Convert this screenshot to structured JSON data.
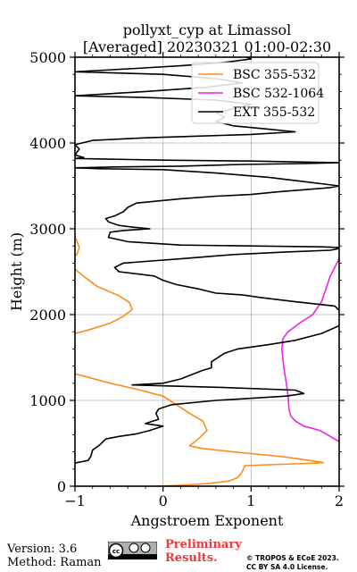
{
  "chart_data": {
    "type": "line",
    "title": "pollyxt_cyp at Limassol",
    "subtitle": "[Averaged] 20230321 01:00-02:30",
    "xlabel": "Angstroem Exponent",
    "ylabel": "Height (m)",
    "xlim": [
      -1,
      2
    ],
    "ylim": [
      0,
      5000
    ],
    "xticks": [
      "−1",
      "0",
      "1",
      "2"
    ],
    "yticks": [
      "0",
      "1000",
      "2000",
      "3000",
      "4000",
      "5000"
    ],
    "grid": true,
    "legend_position": "top-right",
    "series": [
      {
        "name": "BSC 355-532",
        "color": "#ff8c1a",
        "points": [
          [
            -0.1,
            0
          ],
          [
            0.2,
            10
          ],
          [
            0.5,
            30
          ],
          [
            0.75,
            60
          ],
          [
            0.85,
            100
          ],
          [
            0.9,
            170
          ],
          [
            0.93,
            240
          ],
          [
            1.2,
            250
          ],
          [
            1.5,
            260
          ],
          [
            1.75,
            270
          ],
          [
            1.82,
            275
          ],
          [
            1.4,
            340
          ],
          [
            1.0,
            380
          ],
          [
            0.7,
            410
          ],
          [
            0.45,
            440
          ],
          [
            0.3,
            470
          ],
          [
            0.4,
            550
          ],
          [
            0.5,
            650
          ],
          [
            0.45,
            760
          ],
          [
            0.3,
            850
          ],
          [
            0.15,
            950
          ],
          [
            0.0,
            1050
          ],
          [
            -0.3,
            1130
          ],
          [
            -0.6,
            1200
          ],
          [
            -1.0,
            1310
          ],
          [
            -1.05,
            1500
          ],
          [
            -1.0,
            1780
          ],
          [
            -0.85,
            1820
          ],
          [
            -0.6,
            1900
          ],
          [
            -0.45,
            1980
          ],
          [
            -0.35,
            2060
          ],
          [
            -0.38,
            2140
          ],
          [
            -0.5,
            2220
          ],
          [
            -0.75,
            2330
          ],
          [
            -0.88,
            2430
          ],
          [
            -1.0,
            2530
          ],
          [
            -1.05,
            2640
          ],
          [
            -0.98,
            2700
          ],
          [
            -0.95,
            2780
          ],
          [
            -0.98,
            2860
          ],
          [
            -1.0,
            2900
          ]
        ]
      },
      {
        "name": "BSC 532-1064",
        "color": "#ee22ee",
        "points": [
          [
            2.0,
            520
          ],
          [
            1.9,
            580
          ],
          [
            1.78,
            650
          ],
          [
            1.6,
            700
          ],
          [
            1.5,
            760
          ],
          [
            1.45,
            820
          ],
          [
            1.43,
            900
          ],
          [
            1.42,
            1050
          ],
          [
            1.4,
            1200
          ],
          [
            1.37,
            1400
          ],
          [
            1.35,
            1600
          ],
          [
            1.36,
            1720
          ],
          [
            1.42,
            1800
          ],
          [
            1.55,
            1900
          ],
          [
            1.7,
            2000
          ],
          [
            1.8,
            2150
          ],
          [
            1.85,
            2300
          ],
          [
            1.9,
            2450
          ],
          [
            2.0,
            2650
          ]
        ]
      },
      {
        "name": "EXT 355-532",
        "color": "#000000",
        "points": [
          [
            -1.0,
            270
          ],
          [
            -0.85,
            300
          ],
          [
            -0.82,
            350
          ],
          [
            -0.8,
            420
          ],
          [
            -0.72,
            480
          ],
          [
            -0.65,
            550
          ],
          [
            -0.5,
            580
          ],
          [
            -0.3,
            610
          ],
          [
            -0.15,
            650
          ],
          [
            0.0,
            700
          ],
          [
            -0.2,
            730
          ],
          [
            -0.05,
            780
          ],
          [
            -0.08,
            850
          ],
          [
            -0.05,
            900
          ],
          [
            0.1,
            950
          ],
          [
            0.6,
            1000
          ],
          [
            1.4,
            1050
          ],
          [
            1.6,
            1080
          ],
          [
            1.5,
            1120
          ],
          [
            0.7,
            1150
          ],
          [
            0.0,
            1170
          ],
          [
            -0.35,
            1180
          ],
          [
            0.0,
            1200
          ],
          [
            0.2,
            1250
          ],
          [
            0.45,
            1350
          ],
          [
            0.55,
            1380
          ],
          [
            0.55,
            1450
          ],
          [
            0.7,
            1550
          ],
          [
            0.85,
            1600
          ],
          [
            1.2,
            1650
          ],
          [
            1.5,
            1700
          ],
          [
            1.8,
            1780
          ],
          [
            2.0,
            1870
          ],
          [
            2.05,
            2000
          ],
          [
            1.95,
            2100
          ],
          [
            1.5,
            2150
          ],
          [
            1.1,
            2200
          ],
          [
            0.9,
            2230
          ],
          [
            0.6,
            2250
          ],
          [
            0.4,
            2300
          ],
          [
            0.15,
            2350
          ],
          [
            0.0,
            2400
          ],
          [
            -0.1,
            2450
          ],
          [
            -0.5,
            2500
          ],
          [
            -0.55,
            2550
          ],
          [
            -0.45,
            2600
          ],
          [
            -0.2,
            2620
          ],
          [
            0.2,
            2650
          ],
          [
            0.8,
            2700
          ],
          [
            1.4,
            2730
          ],
          [
            1.9,
            2750
          ],
          [
            2.05,
            2780
          ],
          [
            1.8,
            2790
          ],
          [
            1.0,
            2800
          ],
          [
            0.2,
            2810
          ],
          [
            -0.4,
            2850
          ],
          [
            -0.62,
            2900
          ],
          [
            -0.6,
            2960
          ],
          [
            -0.45,
            2980
          ],
          [
            -0.15,
            3000
          ],
          [
            -0.35,
            3020
          ],
          [
            -0.5,
            3040
          ],
          [
            -0.62,
            3080
          ],
          [
            -0.65,
            3120
          ],
          [
            -0.55,
            3150
          ],
          [
            -0.45,
            3200
          ],
          [
            -0.4,
            3250
          ],
          [
            -0.3,
            3300
          ],
          [
            0.2,
            3350
          ],
          [
            0.6,
            3380
          ],
          [
            1.0,
            3400
          ],
          [
            1.3,
            3430
          ],
          [
            1.9,
            3480
          ],
          [
            2.0,
            3500
          ],
          [
            1.6,
            3550
          ],
          [
            1.2,
            3600
          ],
          [
            0.6,
            3650
          ],
          [
            0.0,
            3690
          ],
          [
            -0.7,
            3700
          ],
          [
            -1.0,
            3710
          ],
          [
            -0.6,
            3720
          ],
          [
            0.2,
            3730
          ],
          [
            0.9,
            3750
          ],
          [
            1.6,
            3760
          ],
          [
            2.0,
            3770
          ],
          [
            1.0,
            3790
          ],
          [
            0.0,
            3800
          ],
          [
            -1.0,
            3820
          ],
          [
            -0.9,
            3830
          ],
          [
            -1.0,
            3860
          ],
          [
            -0.95,
            3930
          ],
          [
            -1.0,
            3980
          ],
          [
            -0.8,
            4030
          ],
          [
            -0.2,
            4060
          ],
          [
            0.4,
            4080
          ],
          [
            1.0,
            4100
          ],
          [
            1.5,
            4130
          ],
          [
            1.2,
            4160
          ],
          [
            0.8,
            4200
          ],
          [
            0.6,
            4250
          ],
          [
            0.7,
            4300
          ],
          [
            0.6,
            4350
          ],
          [
            0.8,
            4400
          ],
          [
            1.0,
            4450
          ],
          [
            0.6,
            4500
          ],
          [
            -0.2,
            4530
          ],
          [
            -1.0,
            4550
          ],
          [
            -0.2,
            4600
          ],
          [
            0.5,
            4650
          ],
          [
            0.9,
            4700
          ],
          [
            0.6,
            4750
          ],
          [
            0.0,
            4800
          ],
          [
            -1.0,
            4830
          ],
          [
            -0.3,
            4870
          ],
          [
            0.2,
            4900
          ],
          [
            0.7,
            4940
          ],
          [
            1.0,
            4980
          ],
          [
            0.95,
            5000
          ]
        ]
      }
    ]
  },
  "footer": {
    "version": "Version: 3.6",
    "method": "Method: Raman",
    "preliminary_line1": "Preliminary",
    "preliminary_line2": "Results.",
    "copyright_line1": "© TROPOS & ECoE 2023.",
    "copyright_line2": "CC BY SA 4.0 License."
  }
}
